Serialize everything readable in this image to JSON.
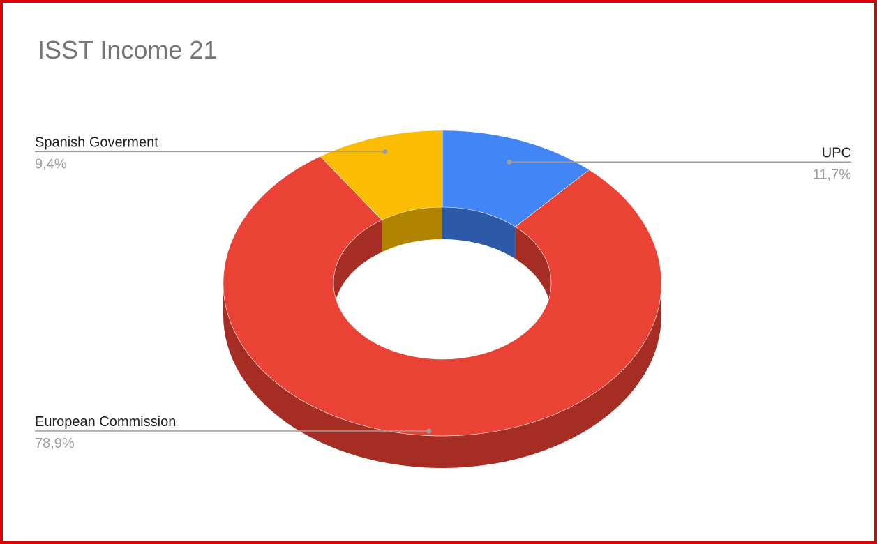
{
  "chart_data": {
    "type": "pie",
    "variant": "3d-donut",
    "title": "ISST Income 21",
    "start_angle": "12 o'clock, clockwise",
    "slices": [
      {
        "label": "UPC",
        "value": 11.7,
        "display": "11,7%",
        "color": "#4285f4",
        "side_color": "#2c5aa8",
        "label_side": "right"
      },
      {
        "label": "European Commission",
        "value": 78.9,
        "display": "78,9%",
        "color": "#ea4335",
        "side_color": "#a52d24",
        "label_side": "left"
      },
      {
        "label": "Spanish Goverment",
        "value": 9.4,
        "display": "9,4%",
        "color": "#fbbc04",
        "side_color": "#b08400",
        "label_side": "left"
      }
    ],
    "legend": "none",
    "label_style": "leader lines with name and percentage"
  }
}
